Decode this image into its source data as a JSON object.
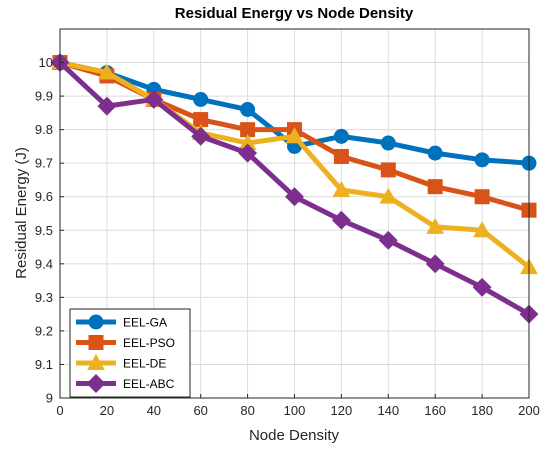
{
  "chart_data": {
    "type": "line",
    "title": "Residual Energy vs Node Density",
    "xlabel": "Node Density",
    "ylabel": "Residual Energy (J)",
    "x": [
      0,
      20,
      40,
      60,
      80,
      100,
      120,
      140,
      160,
      180,
      200
    ],
    "xlim": [
      0,
      200
    ],
    "ylim": [
      9,
      10.1
    ],
    "xticks": [
      "0",
      "20",
      "40",
      "60",
      "80",
      "100",
      "120",
      "140",
      "160",
      "180",
      "200"
    ],
    "yticks": [
      "9",
      "9.1",
      "9.2",
      "9.3",
      "9.4",
      "9.5",
      "9.6",
      "9.7",
      "9.8",
      "9.9",
      "10"
    ],
    "grid": true,
    "legend_position": "bottom-left",
    "series": [
      {
        "name": "EEL-GA",
        "color": "#0072BD",
        "marker": "circle",
        "values": [
          10.0,
          9.97,
          9.92,
          9.89,
          9.86,
          9.75,
          9.78,
          9.76,
          9.73,
          9.71,
          9.7
        ]
      },
      {
        "name": "EEL-PSO",
        "color": "#D95319",
        "marker": "square",
        "values": [
          10.0,
          9.96,
          9.89,
          9.83,
          9.8,
          9.8,
          9.72,
          9.68,
          9.63,
          9.6,
          9.56
        ]
      },
      {
        "name": "EEL-DE",
        "color": "#EDB120",
        "marker": "triangle",
        "values": [
          10.0,
          9.97,
          9.89,
          9.79,
          9.76,
          9.78,
          9.62,
          9.6,
          9.51,
          9.5,
          9.39
        ]
      },
      {
        "name": "EEL-ABC",
        "color": "#7E2F8E",
        "marker": "diamond",
        "values": [
          10.0,
          9.87,
          9.89,
          9.78,
          9.73,
          9.6,
          9.53,
          9.47,
          9.4,
          9.33,
          9.25
        ]
      }
    ]
  }
}
